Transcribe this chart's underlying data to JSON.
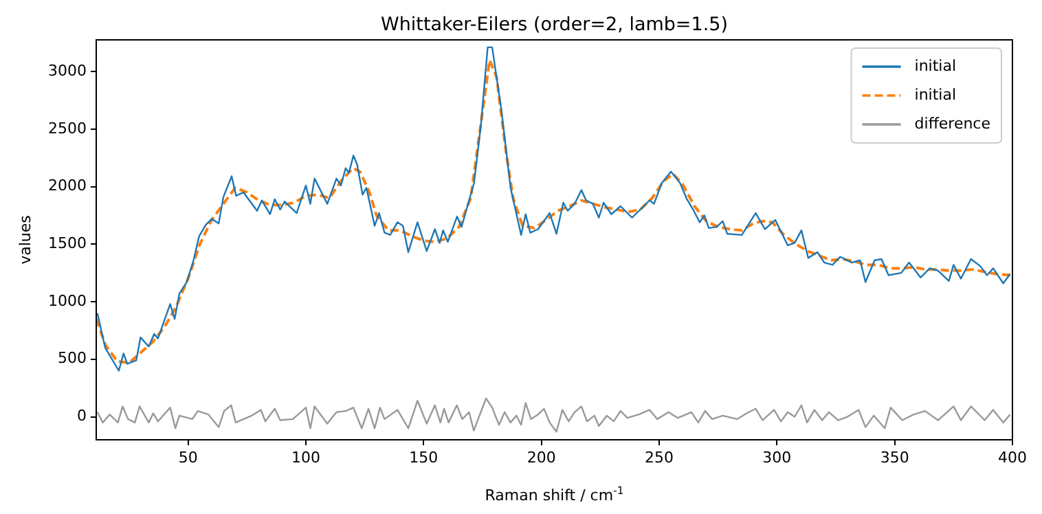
{
  "chart_data": {
    "type": "line",
    "title": "Whittaker-Eilers (order=2, lamb=1.5)",
    "xlabel": "Raman shift / cm$^{-1}$",
    "ylabel": "values",
    "xlim": [
      11,
      400
    ],
    "xticks": [
      50,
      100,
      150,
      200,
      250,
      300,
      350,
      400
    ],
    "ylim": [
      -200,
      3275
    ],
    "yticks": [
      0,
      500,
      1000,
      1500,
      2000,
      2500,
      3000
    ],
    "grid": false,
    "legend": "top right",
    "marker": "none",
    "series": [
      {
        "name": "initial",
        "color": "#1f77b4",
        "line_style": "solid",
        "x": [
          11.5,
          14.8,
          20.6,
          22.6,
          24.2,
          28,
          29.8,
          33.3,
          35.6,
          37.2,
          42.4,
          44.3,
          46.3,
          49.4,
          52.2,
          54.7,
          57.6,
          60.1,
          63,
          65,
          68.5,
          70.4,
          73.5,
          79.3,
          81.3,
          84.8,
          86.8,
          89.1,
          91,
          96.1,
          100,
          101.9,
          103.7,
          109.1,
          113,
          114.9,
          116.9,
          118.3,
          120.2,
          121.8,
          124.1,
          125.7,
          129.2,
          131.1,
          133.4,
          135.8,
          138.9,
          141.2,
          143.5,
          147.4,
          151.3,
          154.8,
          156.8,
          158.3,
          160.3,
          164.2,
          166.1,
          171.4,
          174.3,
          177.2,
          179.1,
          183,
          186.9,
          191.4,
          193.3,
          195.3,
          198.6,
          203.5,
          206.4,
          209.3,
          211.2,
          214.1,
          217,
          219,
          221.9,
          224.4,
          226.4,
          229.7,
          233.6,
          238.5,
          245.9,
          247.8,
          251.1,
          255,
          258.9,
          261.8,
          264.7,
          267.2,
          269.2,
          271.1,
          274.4,
          277,
          278.9,
          285.1,
          291,
          294.9,
          299.3,
          304.6,
          307.5,
          310.4,
          313.3,
          317.2,
          320.1,
          323.6,
          326.9,
          331.8,
          335.3,
          337.6,
          341.5,
          344.4,
          347.4,
          352.8,
          356.1,
          361,
          364.9,
          368.4,
          373,
          375,
          378.1,
          382.4,
          386.3,
          389.2,
          391.8,
          396.1,
          399
        ],
        "values": [
          900,
          600,
          400,
          550,
          460,
          490,
          690,
          610,
          720,
          680,
          980,
          850,
          1070,
          1170,
          1350,
          1570,
          1670,
          1720,
          1680,
          1910,
          2090,
          1920,
          1950,
          1790,
          1880,
          1760,
          1890,
          1800,
          1870,
          1770,
          2010,
          1850,
          2070,
          1850,
          2070,
          2010,
          2160,
          2120,
          2270,
          2190,
          1930,
          1990,
          1660,
          1770,
          1600,
          1580,
          1690,
          1660,
          1430,
          1690,
          1440,
          1630,
          1510,
          1620,
          1520,
          1740,
          1650,
          2030,
          2530,
          3210,
          3210,
          2670,
          1990,
          1580,
          1760,
          1600,
          1630,
          1770,
          1590,
          1860,
          1790,
          1850,
          1970,
          1880,
          1850,
          1730,
          1860,
          1760,
          1830,
          1730,
          1880,
          1850,
          2030,
          2130,
          2030,
          1890,
          1790,
          1690,
          1750,
          1640,
          1650,
          1700,
          1590,
          1580,
          1770,
          1630,
          1710,
          1490,
          1510,
          1620,
          1380,
          1430,
          1340,
          1320,
          1390,
          1340,
          1360,
          1170,
          1360,
          1370,
          1230,
          1250,
          1340,
          1210,
          1290,
          1270,
          1180,
          1320,
          1200,
          1370,
          1310,
          1230,
          1290,
          1160,
          1240
        ]
      },
      {
        "name": "initial",
        "color": "#ff7f0e",
        "line_style": "dashed",
        "x": [
          11,
          15,
          20,
          25,
          30,
          35,
          40,
          45,
          50,
          55,
          60,
          65,
          70,
          75,
          80,
          85,
          90,
          95,
          100,
          105,
          110,
          115,
          120,
          123,
          127,
          130,
          135,
          140,
          145,
          150,
          155,
          160,
          165,
          170,
          174,
          178,
          181,
          185,
          188,
          192,
          197,
          202,
          207,
          212,
          217,
          222,
          227,
          232,
          237,
          242,
          247,
          252,
          256,
          260,
          265,
          270,
          275,
          280,
          285,
          290,
          294,
          298,
          303,
          308,
          313,
          318,
          323,
          328,
          333,
          338,
          343,
          348,
          353,
          358,
          363,
          368,
          373,
          378,
          383,
          388,
          393,
          400
        ],
        "values": [
          850,
          620,
          480,
          470,
          560,
          650,
          780,
          960,
          1200,
          1500,
          1710,
          1850,
          1990,
          1950,
          1880,
          1840,
          1840,
          1860,
          1920,
          1930,
          1900,
          2050,
          2160,
          2130,
          1950,
          1750,
          1620,
          1620,
          1570,
          1530,
          1520,
          1550,
          1650,
          1900,
          2500,
          3100,
          2950,
          2300,
          1900,
          1660,
          1640,
          1710,
          1790,
          1830,
          1880,
          1850,
          1820,
          1800,
          1780,
          1800,
          1900,
          2050,
          2110,
          2020,
          1830,
          1700,
          1650,
          1630,
          1620,
          1680,
          1700,
          1690,
          1580,
          1500,
          1440,
          1400,
          1360,
          1370,
          1350,
          1320,
          1320,
          1290,
          1290,
          1300,
          1280,
          1280,
          1270,
          1270,
          1280,
          1260,
          1240,
          1230
        ]
      },
      {
        "name": "difference",
        "color": "#999999",
        "line_style": "solid",
        "x": [
          11.5,
          13.8,
          16.7,
          20.2,
          22.2,
          24.5,
          27.4,
          29.4,
          33.3,
          35.2,
          37.2,
          42.4,
          44.6,
          46.3,
          51.8,
          54.1,
          58.6,
          63,
          65.3,
          68.3,
          70.2,
          77,
          80.9,
          82.8,
          86.8,
          89.1,
          94.5,
          100,
          101.9,
          103.7,
          109.1,
          113,
          116.9,
          120.2,
          123.7,
          126.6,
          129.2,
          131.5,
          133.4,
          138.9,
          143.5,
          147.4,
          151.3,
          154.8,
          157.1,
          158.7,
          160.6,
          164.1,
          166.4,
          169.3,
          171.3,
          176.5,
          179.1,
          182,
          184.4,
          186.9,
          189.4,
          191.4,
          193.3,
          195.6,
          198.6,
          201.1,
          203.5,
          206.4,
          208.9,
          211.6,
          214.1,
          217,
          219.4,
          222.5,
          224.4,
          227.8,
          230.7,
          233.6,
          236.5,
          241.4,
          245.9,
          249.2,
          254,
          257.9,
          263.7,
          266.6,
          269.5,
          272.5,
          277,
          283.2,
          287.1,
          291,
          293.9,
          298.8,
          301.7,
          304.6,
          307.5,
          310.4,
          312.8,
          315.9,
          319.2,
          322.1,
          326,
          329.9,
          334.7,
          337.6,
          341.1,
          345.8,
          348.3,
          353.2,
          358.1,
          362.9,
          368.4,
          375,
          378.1,
          382.4,
          388.2,
          391.8,
          396.1,
          399
        ],
        "values": [
          40,
          -50,
          20,
          -50,
          90,
          -20,
          -50,
          90,
          -50,
          30,
          -40,
          80,
          -100,
          10,
          -20,
          50,
          20,
          -90,
          50,
          100,
          -50,
          10,
          60,
          -40,
          70,
          -30,
          -20,
          80,
          -100,
          90,
          -60,
          40,
          50,
          80,
          -100,
          70,
          -100,
          80,
          -20,
          60,
          -100,
          140,
          -60,
          100,
          -50,
          70,
          -50,
          100,
          -20,
          40,
          -120,
          160,
          80,
          -70,
          40,
          -50,
          10,
          -70,
          120,
          -20,
          20,
          70,
          -50,
          -130,
          60,
          -40,
          40,
          90,
          -40,
          10,
          -80,
          10,
          -40,
          50,
          -10,
          20,
          60,
          -20,
          40,
          -10,
          40,
          -50,
          50,
          -20,
          10,
          -20,
          30,
          70,
          -30,
          60,
          -40,
          40,
          0,
          100,
          -50,
          60,
          -30,
          40,
          -30,
          0,
          60,
          -90,
          10,
          -100,
          80,
          -30,
          20,
          50,
          -30,
          90,
          -30,
          90,
          -30,
          60,
          -50,
          20
        ]
      }
    ]
  }
}
